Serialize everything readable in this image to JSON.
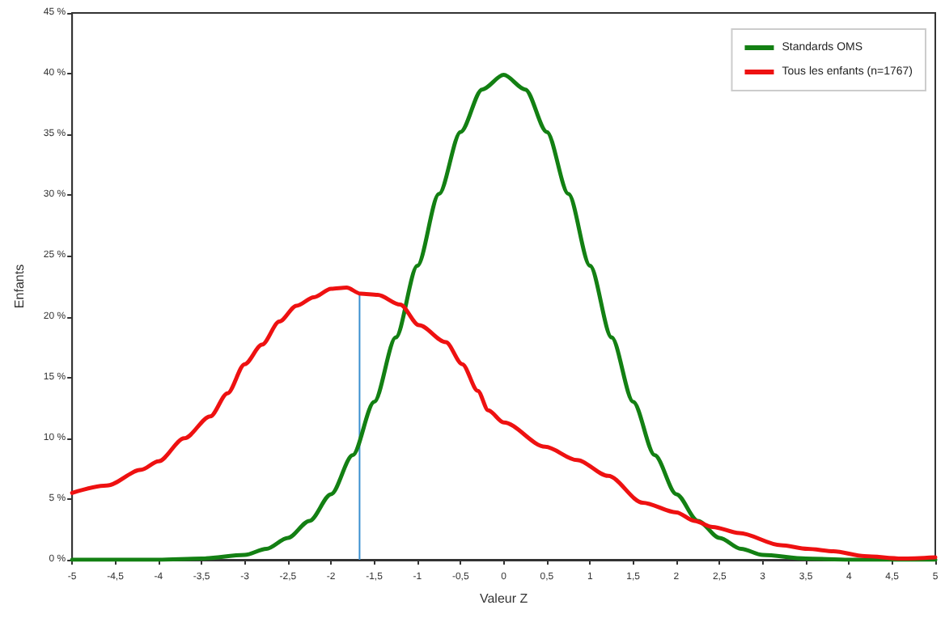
{
  "chart_data": {
    "type": "line",
    "xlabel": "Valeur Z",
    "ylabel": "Enfants",
    "legend": "top right",
    "grid": false,
    "marker": "none",
    "line_style": "solid",
    "xlim": [
      -5,
      5
    ],
    "ylim": [
      0,
      45
    ],
    "xticks": [
      -5,
      {
        "value": -4.5,
        "label": "-4,5"
      },
      -4,
      {
        "value": -3.5,
        "label": "-3,5"
      },
      -3,
      {
        "value": -2.5,
        "label": "-2,5"
      },
      -2,
      {
        "value": -1.5,
        "label": "-1,5"
      },
      -1,
      {
        "value": -0.5,
        "label": "-0,5"
      },
      0,
      {
        "value": 0.5,
        "label": "0,5"
      },
      1,
      {
        "value": 1.5,
        "label": "1,5"
      },
      2,
      {
        "value": 2.5,
        "label": "2,5"
      },
      3,
      {
        "value": 3.5,
        "label": "3,5"
      },
      4,
      {
        "value": 4.5,
        "label": "4,5"
      },
      5
    ],
    "yticks": [
      {
        "value": 0,
        "label": "0 %"
      },
      {
        "value": 5,
        "label": "5 %"
      },
      {
        "value": 10,
        "label": "10 %"
      },
      {
        "value": 15,
        "label": "15 %"
      },
      {
        "value": 20,
        "label": "20 %"
      },
      {
        "value": 25,
        "label": "25 %"
      },
      {
        "value": 30,
        "label": "30 %"
      },
      {
        "value": 35,
        "label": "35 %"
      },
      {
        "value": 40,
        "label": "40 %"
      },
      {
        "value": 45,
        "label": "45 %"
      }
    ],
    "ref_lines": [
      {
        "axis": "x",
        "value": -1.67,
        "color": "#3a8fd0"
      }
    ],
    "series": [
      {
        "name": "Standards OMS",
        "color": "#138013",
        "x": [
          -5,
          -4,
          -3.5,
          -3,
          -2.75,
          -2.5,
          -2.25,
          -2,
          -1.75,
          -1.5,
          -1.25,
          -1,
          -0.75,
          -0.5,
          -0.25,
          0,
          0.25,
          0.5,
          0.75,
          1,
          1.25,
          1.5,
          1.75,
          2,
          2.25,
          2.5,
          2.75,
          3,
          3.5,
          4,
          5
        ],
        "values": [
          0,
          0,
          0.1,
          0.4,
          0.9,
          1.8,
          3.2,
          5.4,
          8.6,
          13,
          18.3,
          24.2,
          30.1,
          35.2,
          38.7,
          39.9,
          38.7,
          35.2,
          30.1,
          24.2,
          18.3,
          13,
          8.6,
          5.4,
          3.2,
          1.8,
          0.9,
          0.4,
          0.1,
          0,
          0
        ]
      },
      {
        "name": "Tous les enfants (n=1767)",
        "color": "#ee1111",
        "x": [
          -5,
          -4.6,
          -4.2,
          -4,
          -3.7,
          -3.4,
          -3.2,
          -3,
          -2.8,
          -2.6,
          -2.4,
          -2.2,
          -2,
          -1.82,
          -1.66,
          -1.46,
          -1.2,
          -0.98,
          -0.67,
          -0.48,
          -0.3,
          -0.18,
          0,
          0.48,
          0.85,
          1.21,
          1.61,
          2,
          2.21,
          2.42,
          2.73,
          3.21,
          3.52,
          3.82,
          4.18,
          4.61,
          5
        ],
        "values": [
          5.5,
          6.1,
          7.4,
          8.1,
          10,
          11.8,
          13.7,
          16.1,
          17.7,
          19.6,
          20.9,
          21.6,
          22.3,
          22.4,
          21.9,
          21.8,
          21,
          19.3,
          17.9,
          16.1,
          13.9,
          12.3,
          11.3,
          9.3,
          8.2,
          6.9,
          4.7,
          3.9,
          3.2,
          2.7,
          2.2,
          1.2,
          0.9,
          0.7,
          0.3,
          0.1,
          0.2
        ]
      }
    ]
  }
}
